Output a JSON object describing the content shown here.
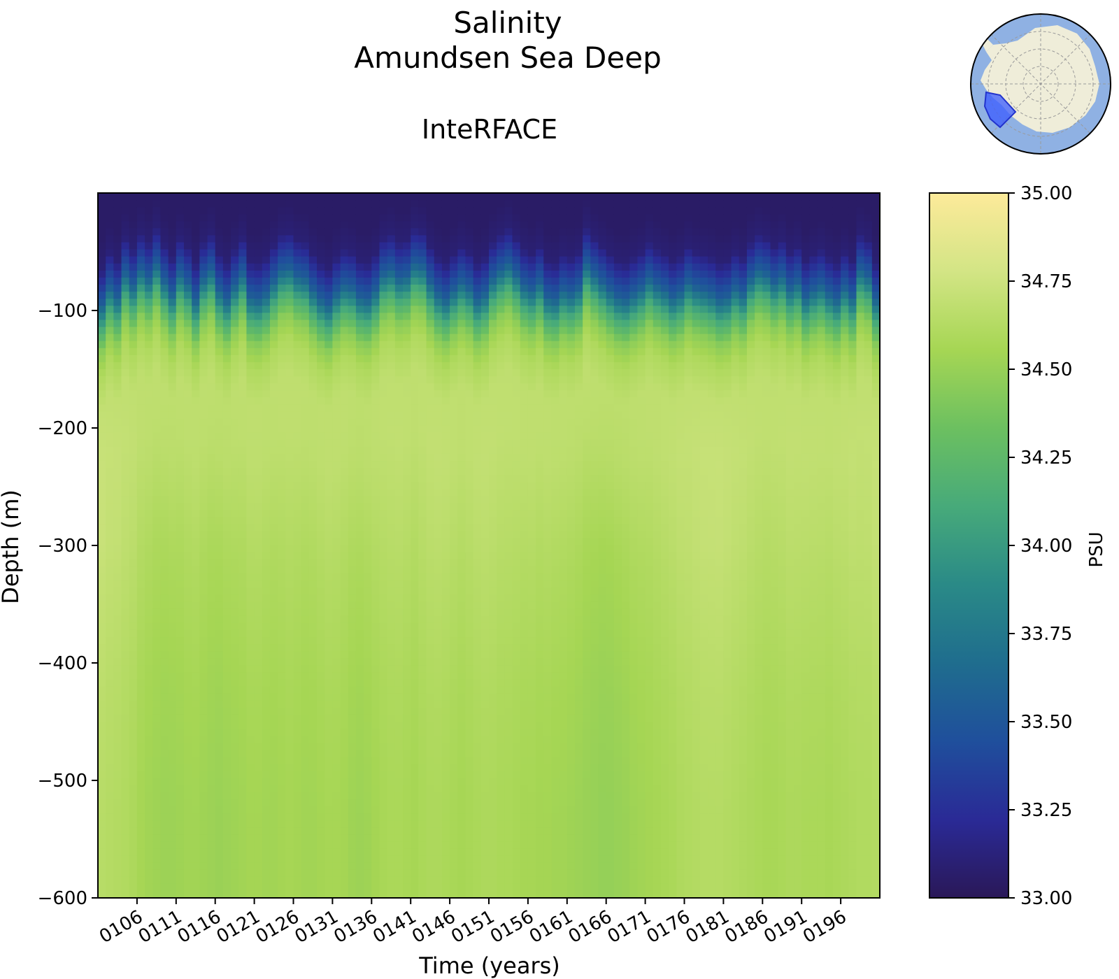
{
  "chart_data": {
    "type": "heatmap",
    "title": "Salinity",
    "subtitle": "Amundsen Sea Deep",
    "model_label": "InteRFACE",
    "xlabel": "Time (years)",
    "ylabel": "Depth (m)",
    "colorbar_label": "PSU",
    "x_range": [
      101,
      200
    ],
    "ylim": [
      -600,
      0
    ],
    "y_ticks": [
      -100,
      -200,
      -300,
      -400,
      -500,
      -600
    ],
    "y_tick_labels": [
      "−100",
      "−200",
      "−300",
      "−400",
      "−500",
      "−600"
    ],
    "x_ticks": [
      106,
      111,
      116,
      121,
      126,
      131,
      136,
      141,
      146,
      151,
      156,
      161,
      166,
      171,
      176,
      181,
      186,
      191,
      196
    ],
    "x_tick_labels": [
      "0106",
      "0111",
      "0116",
      "0121",
      "0126",
      "0131",
      "0136",
      "0141",
      "0146",
      "0151",
      "0156",
      "0161",
      "0166",
      "0171",
      "0176",
      "0181",
      "0186",
      "0191",
      "0196"
    ],
    "color_range": [
      33.0,
      35.0
    ],
    "colorbar_ticks": [
      33.0,
      33.25,
      33.5,
      33.75,
      34.0,
      34.25,
      34.5,
      34.75,
      35.0
    ],
    "colorbar_tick_labels": [
      "33.00",
      "33.25",
      "33.50",
      "33.75",
      "34.00",
      "34.25",
      "34.50",
      "34.75",
      "35.00"
    ],
    "colormap": [
      "#2a1858",
      "#2a2a96",
      "#1f4f9c",
      "#1f6d8e",
      "#2a8a87",
      "#47aa7a",
      "#6cc060",
      "#a6d654",
      "#d3e585",
      "#fdea9a"
    ],
    "depth_levels": [
      -5,
      -30,
      -60,
      -80,
      -100,
      -120,
      -150,
      -200,
      -300,
      -400,
      -500,
      -600
    ],
    "profile": [
      33.05,
      33.1,
      33.55,
      34.1,
      34.45,
      34.6,
      34.68,
      34.68,
      34.62,
      34.58,
      34.56,
      34.56
    ],
    "mixed_layer_depth_by_year": [
      35,
      20,
      28,
      8,
      18,
      5,
      12,
      0,
      14,
      25,
      8,
      16,
      30,
      12,
      5,
      22,
      30,
      18,
      8,
      28,
      30,
      25,
      14,
      5,
      3,
      10,
      12,
      22,
      30,
      35,
      25,
      18,
      20,
      28,
      30,
      22,
      8,
      5,
      12,
      10,
      0,
      2,
      15,
      25,
      30,
      22,
      15,
      20,
      30,
      25,
      12,
      5,
      0,
      8,
      18,
      22,
      15,
      28,
      30,
      22,
      25,
      20,
      0,
      8,
      15,
      22,
      28,
      30,
      25,
      20,
      12,
      18,
      22,
      28,
      24,
      15,
      20,
      22,
      25,
      30,
      28,
      20,
      25,
      12,
      5,
      8,
      15,
      10,
      20,
      15,
      28,
      22,
      18,
      25,
      30,
      20,
      28,
      5,
      10,
      30
    ],
    "deep_anomaly_by_year": [
      0.08,
      0.07,
      0.06,
      0.05,
      0.03,
      0.0,
      -0.02,
      -0.03,
      -0.04,
      -0.04,
      -0.03,
      -0.02,
      -0.02,
      -0.03,
      -0.04,
      -0.05,
      -0.04,
      -0.03,
      -0.02,
      -0.01,
      -0.01,
      -0.02,
      -0.02,
      -0.01,
      0.0,
      -0.01,
      -0.02,
      -0.02,
      -0.01,
      0.0,
      0.0,
      -0.01,
      -0.03,
      -0.04,
      -0.03,
      -0.01,
      0.01,
      0.02,
      0.02,
      0.01,
      0.0,
      0.02,
      0.03,
      0.03,
      0.02,
      0.01,
      0.0,
      0.01,
      0.02,
      0.03,
      0.03,
      0.02,
      0.02,
      0.01,
      0.0,
      0.0,
      -0.01,
      -0.01,
      -0.02,
      -0.02,
      -0.03,
      -0.04,
      -0.05,
      -0.06,
      -0.07,
      -0.07,
      -0.06,
      -0.05,
      -0.03,
      -0.02,
      -0.01,
      0.0,
      0.01,
      0.02,
      0.04,
      0.05,
      0.06,
      0.07,
      0.07,
      0.07,
      0.06,
      0.05,
      0.04,
      0.03,
      0.02,
      0.01,
      0.01,
      0.02,
      0.03,
      0.03,
      0.02,
      0.02,
      0.02,
      0.01,
      0.02,
      0.03,
      0.04,
      0.05,
      0.05,
      0.06
    ]
  },
  "inset_map": {
    "description_icon": "antarctica-locator-map-icon",
    "land_color": "#efedd9",
    "ocean_color": "#8fb1e3",
    "region_color": "#3b5cff"
  }
}
